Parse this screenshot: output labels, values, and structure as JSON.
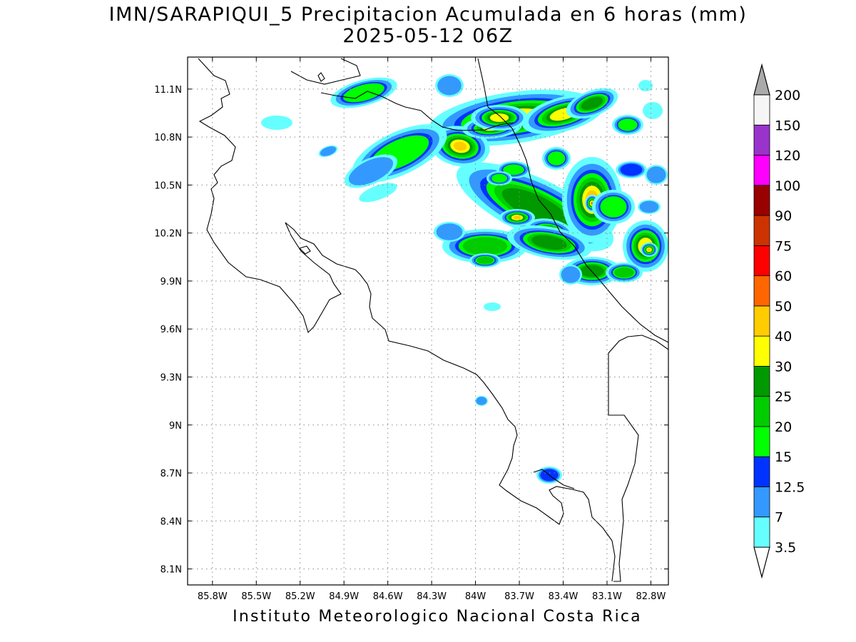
{
  "title": {
    "line1": "IMN/SARAPIQUI_5 Precipitacion Acumulada en 6 horas (mm)",
    "line2": "2025-05-12 06Z"
  },
  "credit": "Instituto Meteorologico Nacional Costa Rica",
  "map": {
    "lon_range": [
      -85.97,
      -82.68
    ],
    "lat_range": [
      8.0,
      11.3
    ],
    "lon_ticks": [
      "85.8W",
      "85.5W",
      "85.2W",
      "84.9W",
      "84.6W",
      "84.3W",
      "84W",
      "83.7W",
      "83.4W",
      "83.1W",
      "82.8W"
    ],
    "lat_ticks": [
      "11.1N",
      "10.8N",
      "10.5N",
      "10.2N",
      "9.9N",
      "9.6N",
      "9.3N",
      "9N",
      "8.7N",
      "8.4N",
      "8.1N"
    ],
    "grid": "dotted"
  },
  "colorbar": {
    "labels": [
      "3.5",
      "7",
      "12.5",
      "15",
      "20",
      "25",
      "30",
      "40",
      "50",
      "60",
      "75",
      "90",
      "100",
      "120",
      "150",
      "200"
    ],
    "colors": [
      "#66ffff",
      "#3399ff",
      "#0033ff",
      "#00ff00",
      "#00cc00",
      "#009900",
      "#ffff00",
      "#ffcc00",
      "#ff6600",
      "#ff0000",
      "#cc3300",
      "#990000",
      "#ff00ff",
      "#9933cc",
      "#f5f5f5"
    ],
    "under_color": "#ffffff",
    "over_color": "#aaaaaa"
  }
}
